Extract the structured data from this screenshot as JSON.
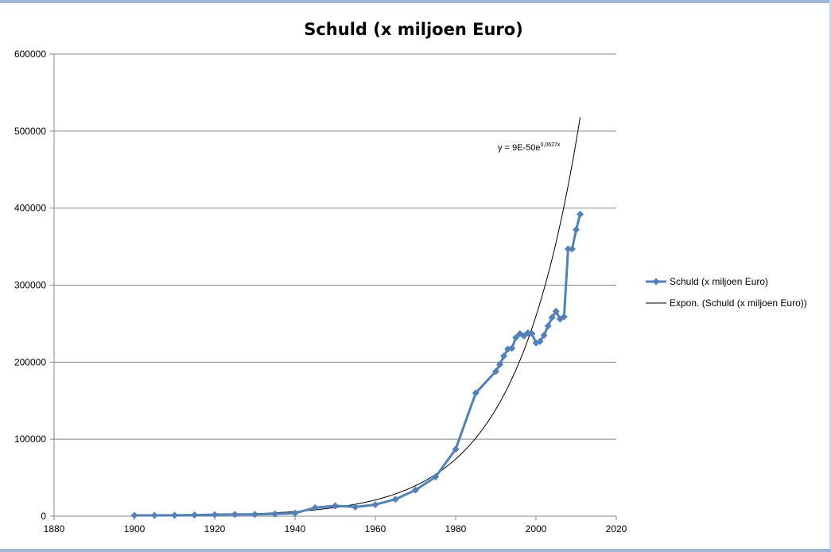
{
  "chart_data": {
    "type": "scatter",
    "title": "Schuld (x miljoen Euro)",
    "xlabel": "",
    "ylabel": "",
    "xlim": [
      1880,
      2020
    ],
    "ylim": [
      0,
      600000
    ],
    "x_ticks": [
      1880,
      1900,
      1920,
      1940,
      1960,
      1980,
      2000,
      2020
    ],
    "y_ticks": [
      0,
      100000,
      200000,
      300000,
      400000,
      500000,
      600000
    ],
    "grid": "horizontal",
    "legend_position": "right",
    "series": [
      {
        "name": "Schuld (x miljoen Euro)",
        "color": "#4f81bd",
        "marker": "diamond",
        "points": [
          [
            1900,
            1000
          ],
          [
            1905,
            1100
          ],
          [
            1910,
            1200
          ],
          [
            1915,
            1500
          ],
          [
            1920,
            2000
          ],
          [
            1925,
            2300
          ],
          [
            1930,
            2300
          ],
          [
            1935,
            3000
          ],
          [
            1940,
            4000
          ],
          [
            1945,
            11000
          ],
          [
            1950,
            13500
          ],
          [
            1955,
            12000
          ],
          [
            1960,
            15000
          ],
          [
            1965,
            22000
          ],
          [
            1970,
            34000
          ],
          [
            1975,
            51000
          ],
          [
            1980,
            87000
          ],
          [
            1985,
            160000
          ],
          [
            1990,
            188000
          ],
          [
            1991,
            197000
          ],
          [
            1992,
            208000
          ],
          [
            1993,
            217000
          ],
          [
            1994,
            218000
          ],
          [
            1995,
            232000
          ],
          [
            1996,
            237000
          ],
          [
            1997,
            234000
          ],
          [
            1998,
            238000
          ],
          [
            1999,
            237000
          ],
          [
            2000,
            225000
          ],
          [
            2001,
            227000
          ],
          [
            2002,
            235000
          ],
          [
            2003,
            247000
          ],
          [
            2004,
            258000
          ],
          [
            2005,
            266000
          ],
          [
            2006,
            256000
          ],
          [
            2007,
            259000
          ],
          [
            2008,
            347000
          ],
          [
            2009,
            347000
          ],
          [
            2010,
            372000
          ],
          [
            2011,
            392000
          ]
        ]
      },
      {
        "name": "Expon. (Schuld (x miljoen Euro))",
        "color": "#000000",
        "trendline": "exponential",
        "equation_prefix": "y = 9E-50e",
        "equation_exponent": "0,0627x",
        "a": 9e-50,
        "b": 0.0627,
        "x_range": [
          1900,
          2011
        ]
      }
    ]
  }
}
